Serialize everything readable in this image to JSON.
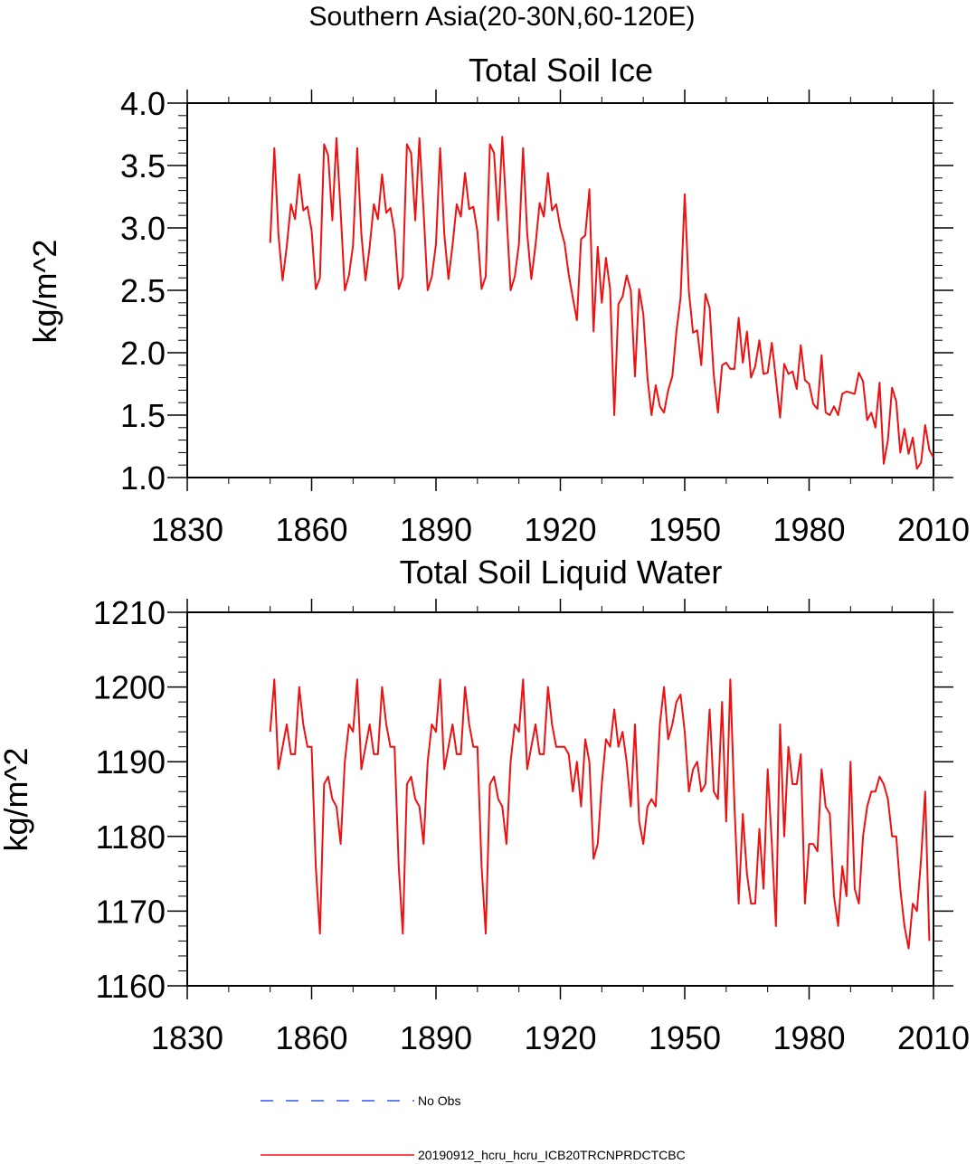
{
  "chart_data": {
    "suptitle": "Southern Asia(20-30N,60-120E)",
    "panels": [
      {
        "type": "line",
        "title": "Total Soil Ice",
        "ylabel": "kg/m^2",
        "xlim": [
          1830,
          2010
        ],
        "ylim": [
          1.0,
          4.0
        ],
        "xticks": [
          "1830",
          "1860",
          "1890",
          "1920",
          "1950",
          "1980",
          "2010"
        ],
        "yticks": [
          "1.0",
          "1.5",
          "2.0",
          "2.5",
          "3.0",
          "3.5",
          "4.0"
        ],
        "x_start": 1850,
        "values": [
          2.88,
          3.64,
          2.95,
          2.58,
          2.85,
          3.19,
          3.07,
          3.43,
          3.14,
          3.17,
          2.98,
          2.51,
          2.6,
          3.67,
          3.58,
          3.06,
          3.72,
          3.13,
          2.5,
          2.62,
          2.86,
          3.64,
          2.95,
          2.58,
          2.85,
          3.19,
          3.07,
          3.43,
          3.12,
          3.16,
          2.97,
          2.51,
          2.61,
          3.67,
          3.6,
          3.06,
          3.72,
          3.13,
          2.5,
          2.61,
          2.87,
          3.64,
          2.95,
          2.59,
          2.86,
          3.19,
          3.09,
          3.44,
          3.15,
          3.17,
          2.97,
          2.51,
          2.61,
          3.67,
          3.6,
          3.06,
          3.73,
          3.13,
          2.5,
          2.61,
          2.87,
          3.64,
          2.96,
          2.59,
          2.86,
          3.2,
          3.09,
          3.44,
          3.14,
          3.19,
          3.0,
          2.88,
          2.63,
          2.44,
          2.26,
          2.91,
          2.94,
          3.31,
          2.17,
          2.85,
          2.4,
          2.76,
          2.51,
          1.5,
          2.39,
          2.45,
          2.62,
          2.5,
          1.81,
          2.51,
          2.31,
          1.8,
          1.5,
          1.74,
          1.57,
          1.52,
          1.7,
          1.81,
          2.17,
          2.44,
          3.27,
          2.49,
          2.16,
          2.18,
          1.9,
          2.47,
          2.36,
          1.82,
          1.52,
          1.9,
          1.92,
          1.87,
          1.87,
          2.28,
          1.92,
          2.17,
          1.8,
          1.89,
          2.1,
          1.83,
          1.84,
          2.08,
          1.79,
          1.48,
          1.91,
          1.83,
          1.85,
          1.71,
          2.06,
          1.78,
          1.75,
          1.59,
          1.55,
          1.98,
          1.52,
          1.5,
          1.57,
          1.5,
          1.67,
          1.69,
          1.68,
          1.67,
          1.84,
          1.77,
          1.46,
          1.52,
          1.4,
          1.76,
          1.11,
          1.3,
          1.72,
          1.61,
          1.2,
          1.39,
          1.19,
          1.32,
          1.07,
          1.12,
          1.42,
          1.22,
          1.16
        ],
        "series_name": "20190912_hcru_hcru_ICB20TRCNPRDCTCBC",
        "color": "#ee1111"
      },
      {
        "type": "line",
        "title": "Total Soil Liquid Water",
        "ylabel": "kg/m^2",
        "xlim": [
          1830,
          2010
        ],
        "ylim": [
          1160,
          1210
        ],
        "xticks": [
          "1830",
          "1860",
          "1890",
          "1920",
          "1950",
          "1980",
          "2010"
        ],
        "yticks": [
          "1160",
          "1170",
          "1180",
          "1190",
          "1200",
          "1210"
        ],
        "x_start": 1850,
        "values": [
          1194,
          1201,
          1189,
          1192,
          1195,
          1191,
          1191,
          1200,
          1195,
          1192,
          1192,
          1176,
          1167,
          1187,
          1188,
          1185,
          1184,
          1179,
          1190,
          1195,
          1194,
          1201,
          1189,
          1192,
          1195,
          1191,
          1191,
          1200,
          1195,
          1192,
          1192,
          1176,
          1167,
          1187,
          1188,
          1185,
          1184,
          1179,
          1190,
          1195,
          1194,
          1201,
          1189,
          1192,
          1195,
          1191,
          1191,
          1200,
          1195,
          1192,
          1192,
          1176,
          1167,
          1187,
          1188,
          1185,
          1184,
          1179,
          1190,
          1195,
          1194,
          1201,
          1189,
          1192,
          1195,
          1191,
          1191,
          1200,
          1195,
          1192,
          1192,
          1192,
          1191,
          1186,
          1190,
          1184,
          1193,
          1190,
          1177,
          1179,
          1187,
          1193,
          1192,
          1197,
          1192,
          1194,
          1190,
          1184,
          1195,
          1182,
          1179,
          1184,
          1185,
          1184,
          1195,
          1200,
          1193,
          1195,
          1198,
          1199,
          1194,
          1186,
          1189,
          1190,
          1186,
          1187,
          1197,
          1186,
          1185,
          1198,
          1182,
          1201,
          1184,
          1171,
          1183,
          1175,
          1171,
          1171,
          1181,
          1173,
          1189,
          1179,
          1168,
          1195,
          1180,
          1192,
          1187,
          1187,
          1191,
          1171,
          1179,
          1179,
          1178,
          1189,
          1184,
          1183,
          1172,
          1168,
          1176,
          1172,
          1190,
          1173,
          1171,
          1180,
          1184,
          1186,
          1186,
          1188,
          1187,
          1185,
          1180,
          1180,
          1173,
          1168,
          1165,
          1171,
          1170,
          1177,
          1186,
          1166
        ],
        "series_name": "20190912_hcru_hcru_ICB20TRCNPRDCTCBC",
        "color": "#ee1111"
      }
    ],
    "legend": [
      {
        "label": "No Obs",
        "style": "dashed",
        "color": "#3355ee"
      },
      {
        "label": "20190912_hcru_hcru_ICB20TRCNPRDCTCBC",
        "style": "solid",
        "color": "#ee1111"
      }
    ]
  }
}
